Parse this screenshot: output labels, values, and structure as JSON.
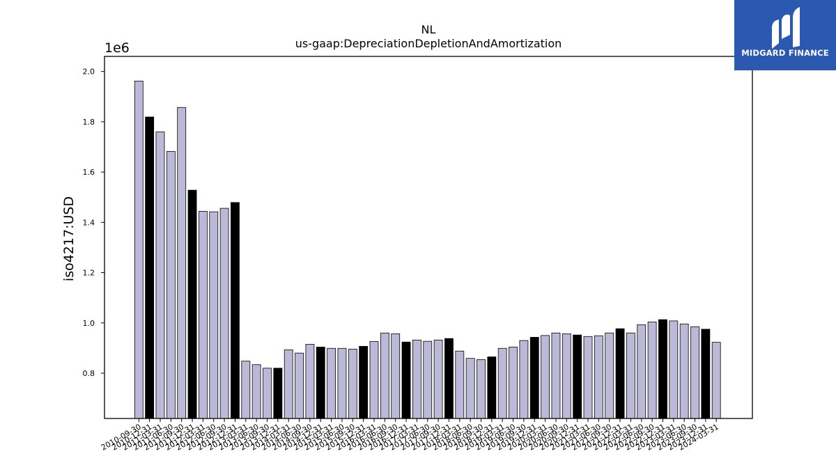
{
  "chart_data": {
    "type": "bar",
    "title": "NL",
    "subtitle": "us-gaap:DepreciationDepletionAndAmortization",
    "ylabel": "iso4217:USD",
    "xlabel": "",
    "offset_label": "1e6",
    "ylim": [
      620000,
      2060000
    ],
    "yticks": [
      "0.8",
      "1.0",
      "1.2",
      "1.4",
      "1.6",
      "1.8",
      "2.0"
    ],
    "ytick_values": [
      800000,
      1000000,
      1200000,
      1400000,
      1600000,
      1800000,
      2000000
    ],
    "colors": {
      "q": "#bcb8d8",
      "fy": "#000000",
      "edge": "#000000"
    },
    "categories": [
      "2010-09-30",
      "2010-12-31",
      "2011-03-31",
      "2011-06-30",
      "2011-09-30",
      "2011-12-31",
      "2012-03-31",
      "2012-06-30",
      "2012-09-30",
      "2012-12-31",
      "2013-03-31",
      "2013-06-30",
      "2013-09-30",
      "2013-12-31",
      "2014-03-31",
      "2014-06-30",
      "2014-09-30",
      "2014-12-31",
      "2015-03-31",
      "2015-06-30",
      "2015-09-30",
      "2015-12-31",
      "2016-03-31",
      "2016-06-30",
      "2016-09-30",
      "2016-12-31",
      "2017-03-31",
      "2017-06-30",
      "2017-09-30",
      "2017-12-31",
      "2018-03-31",
      "2018-06-30",
      "2018-09-30",
      "2018-12-31",
      "2019-03-31",
      "2019-06-30",
      "2019-09-30",
      "2019-12-31",
      "2020-03-31",
      "2020-06-30",
      "2020-09-30",
      "2020-12-31",
      "2021-03-31",
      "2021-06-30",
      "2021-09-30",
      "2021-12-31",
      "2022-03-31",
      "2022-06-30",
      "2022-09-30",
      "2022-12-31",
      "2023-03-31",
      "2023-06-30",
      "2023-09-30",
      "2023-12-31",
      "2024-03-31"
    ],
    "values": [
      1962000,
      1819000,
      1760000,
      1682000,
      1857000,
      1528000,
      1444000,
      1442000,
      1456000,
      1479000,
      848000,
      834000,
      820000,
      820000,
      893000,
      880000,
      915000,
      904000,
      899000,
      899000,
      896000,
      907000,
      926000,
      960000,
      957000,
      924000,
      932000,
      927000,
      932000,
      938000,
      888000,
      859000,
      854000,
      865000,
      899000,
      904000,
      930000,
      943000,
      950000,
      960000,
      957000,
      952000,
      946000,
      949000,
      960000,
      977000,
      960000,
      993000,
      1004000,
      1013000,
      1008000,
      996000,
      985000,
      975000,
      923000
    ],
    "fiscal_year_end": [
      false,
      true,
      false,
      false,
      false,
      true,
      false,
      false,
      false,
      true,
      false,
      false,
      false,
      true,
      false,
      false,
      false,
      true,
      false,
      false,
      false,
      true,
      false,
      false,
      false,
      true,
      false,
      false,
      false,
      true,
      false,
      false,
      false,
      true,
      false,
      false,
      false,
      true,
      false,
      false,
      false,
      true,
      false,
      false,
      false,
      true,
      false,
      false,
      false,
      true,
      false,
      false,
      false,
      true,
      false
    ]
  },
  "logo": {
    "text": "MIDGARD FINANCE"
  }
}
